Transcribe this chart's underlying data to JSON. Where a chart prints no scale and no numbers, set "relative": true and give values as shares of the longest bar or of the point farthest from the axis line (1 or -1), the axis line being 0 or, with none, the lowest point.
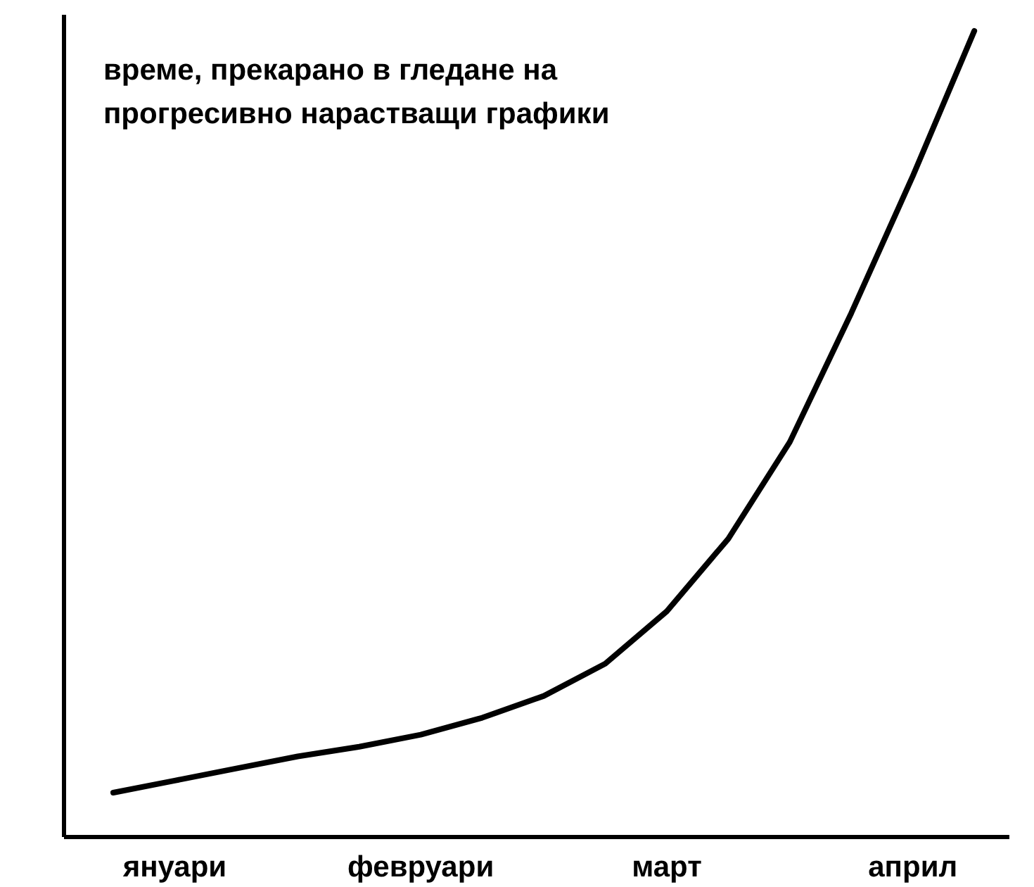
{
  "chart_data": {
    "type": "line",
    "title": "време, прекарано в гледане на\nпрогресивно нарастващи графики",
    "relative": true,
    "categories": [
      null,
      "януари",
      null,
      null,
      null,
      "февруари",
      null,
      null,
      null,
      "март",
      null,
      null,
      null,
      "април",
      null
    ],
    "series": [
      {
        "color": "#000000",
        "values": [
          0.055,
          0.07,
          0.085,
          0.1,
          0.112,
          0.127,
          0.148,
          0.175,
          0.215,
          0.28,
          0.37,
          0.49,
          0.65,
          0.82,
          1.0
        ]
      }
    ]
  }
}
